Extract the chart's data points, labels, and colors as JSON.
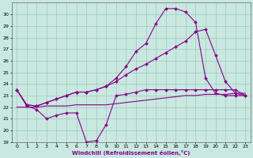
{
  "xlabel": "Windchill (Refroidissement éolien,°C)",
  "xlim": [
    -0.5,
    23.5
  ],
  "ylim": [
    19,
    31
  ],
  "yticks": [
    19,
    20,
    21,
    22,
    23,
    24,
    25,
    26,
    27,
    28,
    29,
    30
  ],
  "xticks": [
    0,
    1,
    2,
    3,
    4,
    5,
    6,
    7,
    8,
    9,
    10,
    11,
    12,
    13,
    14,
    15,
    16,
    17,
    18,
    19,
    20,
    21,
    22,
    23
  ],
  "bg_color": "#c8e8e0",
  "grid_color": "#a0c8c0",
  "line_color": "#880088",
  "series": [
    {
      "x": [
        0,
        1,
        2,
        3,
        4,
        5,
        6,
        7,
        8,
        9,
        10,
        11,
        12,
        13,
        14,
        15,
        16,
        17,
        18,
        19,
        20,
        21,
        22,
        23
      ],
      "y": [
        23.5,
        22.1,
        21.8,
        21.0,
        21.3,
        21.5,
        21.5,
        19.0,
        19.1,
        20.5,
        23.0,
        23.1,
        23.3,
        23.5,
        23.5,
        23.5,
        23.5,
        23.5,
        23.5,
        23.5,
        23.5,
        23.5,
        23.5,
        23.0
      ],
      "marker": "D",
      "markersize": 2.0,
      "linewidth": 0.8,
      "has_marker": true
    },
    {
      "x": [
        0,
        1,
        2,
        3,
        4,
        5,
        6,
        7,
        8,
        9,
        10,
        11,
        12,
        13,
        14,
        15,
        16,
        17,
        18,
        19,
        20,
        21,
        22,
        23
      ],
      "y": [
        22.0,
        22.0,
        22.0,
        22.1,
        22.1,
        22.1,
        22.2,
        22.2,
        22.2,
        22.2,
        22.3,
        22.4,
        22.5,
        22.6,
        22.7,
        22.8,
        22.9,
        23.0,
        23.0,
        23.1,
        23.1,
        23.1,
        23.2,
        23.2
      ],
      "marker": null,
      "markersize": 0,
      "linewidth": 0.8,
      "has_marker": false
    },
    {
      "x": [
        0,
        1,
        2,
        3,
        4,
        5,
        6,
        7,
        8,
        9,
        10,
        11,
        12,
        13,
        14,
        15,
        16,
        17,
        18,
        19,
        20,
        21,
        22,
        23
      ],
      "y": [
        23.5,
        22.2,
        22.1,
        22.4,
        22.7,
        23.0,
        23.3,
        23.3,
        23.5,
        23.8,
        24.2,
        24.8,
        25.3,
        25.7,
        26.2,
        26.7,
        27.2,
        27.7,
        28.5,
        28.7,
        26.5,
        24.2,
        23.2,
        23.0
      ],
      "marker": "D",
      "markersize": 2.0,
      "linewidth": 0.8,
      "has_marker": true
    },
    {
      "x": [
        0,
        1,
        2,
        3,
        4,
        5,
        6,
        7,
        8,
        9,
        10,
        11,
        12,
        13,
        14,
        15,
        16,
        17,
        18,
        19,
        20,
        21,
        22,
        23
      ],
      "y": [
        23.5,
        22.2,
        22.1,
        22.4,
        22.7,
        23.0,
        23.3,
        23.3,
        23.5,
        23.8,
        24.5,
        25.5,
        26.8,
        27.5,
        29.2,
        30.5,
        30.5,
        30.2,
        29.3,
        24.5,
        23.2,
        23.0,
        23.0,
        23.0
      ],
      "marker": "D",
      "markersize": 2.0,
      "linewidth": 0.8,
      "has_marker": true
    }
  ]
}
